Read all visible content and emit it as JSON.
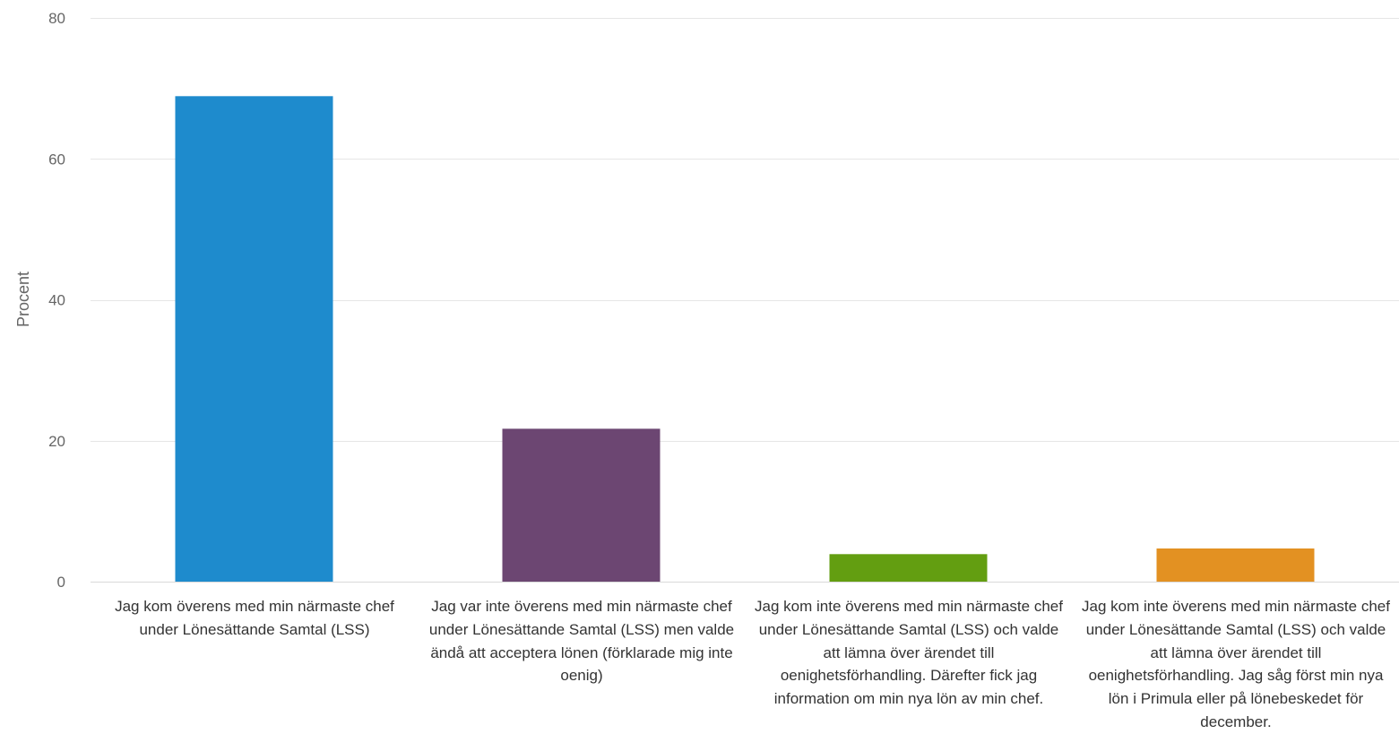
{
  "chart_data": {
    "type": "bar",
    "title": "",
    "xlabel": "",
    "ylabel": "Procent",
    "ylim": [
      0,
      80
    ],
    "yticks": [
      0,
      20,
      40,
      60,
      80
    ],
    "grid": true,
    "legend": "none",
    "categories": [
      "Jag kom överens med min närmaste chef under Lönesättande Samtal (LSS)",
      "Jag var inte överens med min närmaste chef under Lönesättande Samtal (LSS) men valde ändå att acceptera lönen (förklarade mig inte oenig)",
      "Jag kom inte överens med min närmaste chef under Lönesättande Samtal (LSS) och valde att lämna över ärendet till oenighetsförhandling. Därefter fick jag information om min nya lön av min chef.",
      "Jag kom inte överens med min närmaste chef under Lönesättande Samtal (LSS) och valde att lämna över ärendet till oenighetsförhandling. Jag såg först min nya lön i Primula eller på lönebeskedet för december."
    ],
    "values": [
      68.9,
      21.7,
      3.9,
      4.7
    ],
    "colors": [
      "#1e8bcd",
      "#6c4672",
      "#639e11",
      "#e39122"
    ]
  }
}
